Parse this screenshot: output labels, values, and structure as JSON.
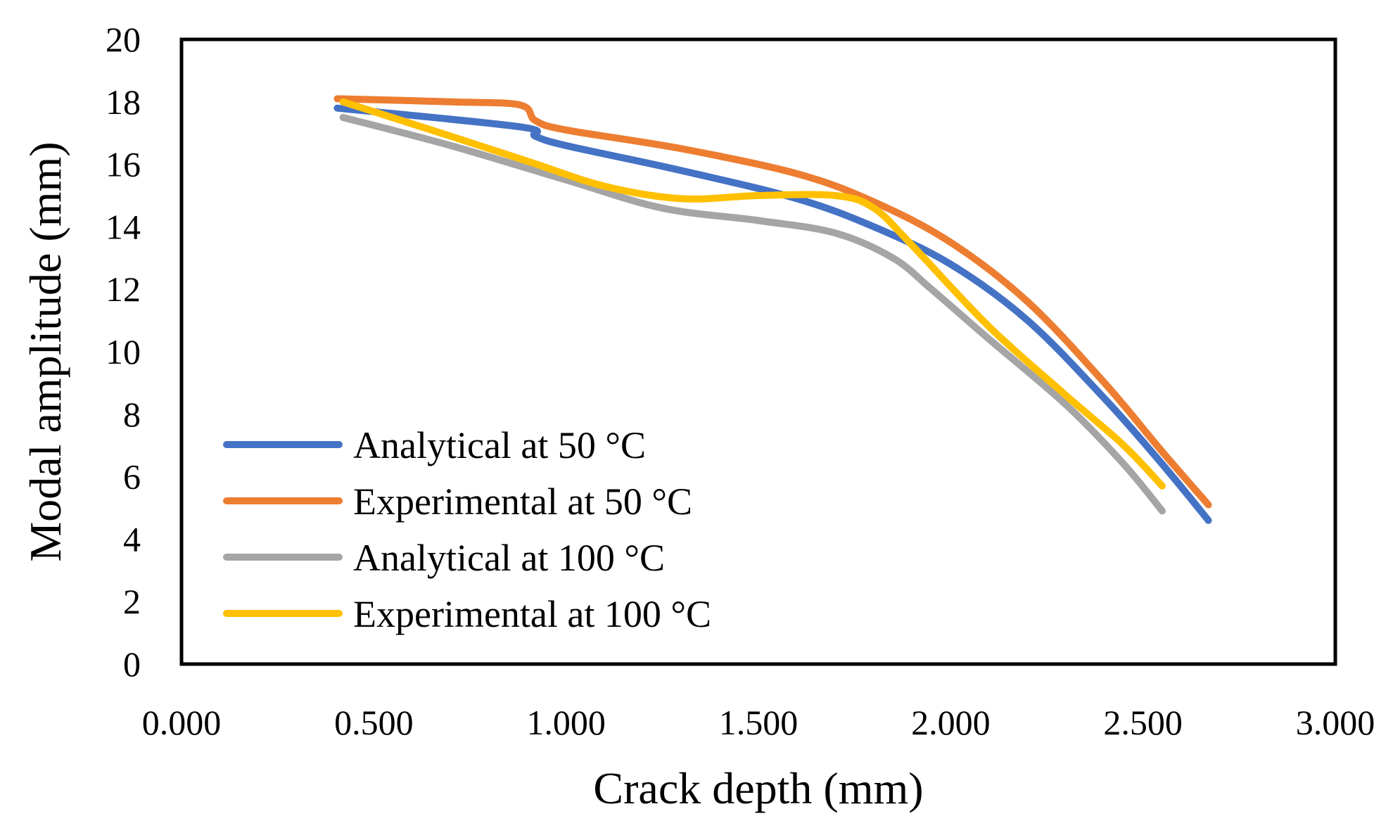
{
  "chart_data": {
    "type": "line",
    "title": "",
    "xlabel": "Crack depth (mm)",
    "ylabel": "Modal amplitude (mm)",
    "xlim": [
      0,
      3
    ],
    "ylim": [
      0,
      20
    ],
    "x_ticks": [
      0,
      0.5,
      1,
      1.5,
      2,
      2.5,
      3
    ],
    "x_tick_labels": [
      "0.000",
      "0.500",
      "1.000",
      "1.500",
      "2.000",
      "2.500",
      "3.000"
    ],
    "y_ticks": [
      0,
      2,
      4,
      6,
      8,
      10,
      12,
      14,
      16,
      18,
      20
    ],
    "y_tick_labels": [
      "0",
      "2",
      "4",
      "6",
      "8",
      "10",
      "12",
      "14",
      "16",
      "18",
      "20"
    ],
    "grid": false,
    "legend_position": "bottom-left",
    "series": [
      {
        "name": "Analytical at 50 °C",
        "color": "#4472C4",
        "x": [
          0.405,
          0.88,
          0.92,
          1.0,
          1.3,
          1.6,
          1.8,
          2.0,
          2.2,
          2.4,
          2.55,
          2.67
        ],
        "y": [
          17.8,
          17.2,
          16.9,
          16.6,
          15.8,
          14.9,
          14.0,
          12.8,
          11.0,
          8.5,
          6.4,
          4.6
        ]
      },
      {
        "name": "Experimental at 50 °C",
        "color": "#ED7D31",
        "x": [
          0.405,
          0.7,
          0.88,
          0.92,
          1.0,
          1.3,
          1.6,
          1.8,
          2.0,
          2.2,
          2.4,
          2.55,
          2.67
        ],
        "y": [
          18.1,
          18.0,
          17.9,
          17.4,
          17.1,
          16.5,
          15.7,
          14.8,
          13.5,
          11.6,
          9.0,
          6.8,
          5.1
        ]
      },
      {
        "name": "Analytical at 100 °C",
        "color": "#A5A5A5",
        "x": [
          0.42,
          0.7,
          1.0,
          1.25,
          1.5,
          1.7,
          1.85,
          1.95,
          2.1,
          2.3,
          2.45,
          2.55
        ],
        "y": [
          17.5,
          16.6,
          15.5,
          14.6,
          14.2,
          13.8,
          13.0,
          12.0,
          10.4,
          8.3,
          6.4,
          4.9
        ]
      },
      {
        "name": "Experimental at 100 °C",
        "color": "#FFC000",
        "x": [
          0.42,
          0.7,
          0.9,
          1.1,
          1.3,
          1.5,
          1.7,
          1.8,
          1.9,
          2.1,
          2.3,
          2.45,
          2.55
        ],
        "y": [
          18.0,
          16.9,
          16.1,
          15.3,
          14.9,
          15.0,
          15.0,
          14.6,
          13.4,
          10.8,
          8.6,
          7.0,
          5.7
        ]
      }
    ]
  }
}
